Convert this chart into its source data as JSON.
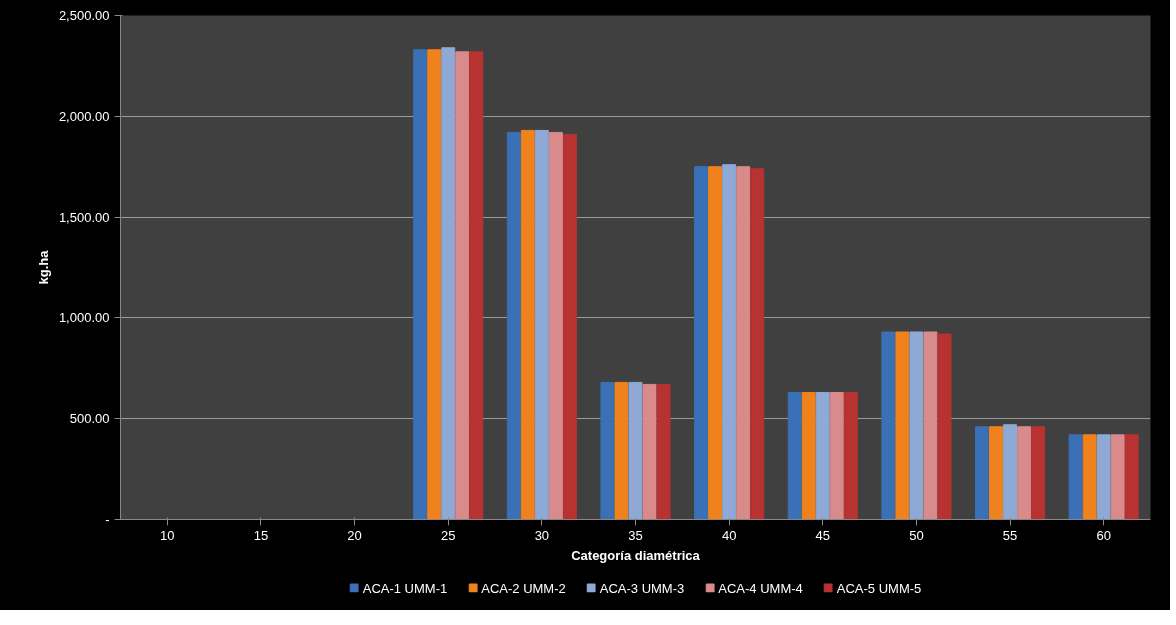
{
  "chart_data": {
    "type": "bar",
    "xlabel": "Categoría diamétrica",
    "ylabel": "kg.ha",
    "categories": [
      "10",
      "15",
      "20",
      "25",
      "30",
      "35",
      "40",
      "45",
      "50",
      "55",
      "60"
    ],
    "series": [
      {
        "name": "ACA-1 UMM-1",
        "color": "#3a70b5",
        "values": [
          0,
          0,
          0,
          2330,
          1920,
          680,
          1750,
          630,
          930,
          460,
          420
        ]
      },
      {
        "name": "ACA-2 UMM-2",
        "color": "#f0821e",
        "values": [
          0,
          0,
          0,
          2330,
          1930,
          680,
          1750,
          630,
          930,
          460,
          420
        ]
      },
      {
        "name": "ACA-3 UMM-3",
        "color": "#8ea9d6",
        "values": [
          0,
          0,
          0,
          2340,
          1930,
          680,
          1760,
          630,
          930,
          470,
          420
        ]
      },
      {
        "name": "ACA-4 UMM-4",
        "color": "#d98a8a",
        "values": [
          0,
          0,
          0,
          2320,
          1920,
          670,
          1750,
          630,
          930,
          460,
          420
        ]
      },
      {
        "name": "ACA-5 UMM-5",
        "color": "#b83232",
        "values": [
          0,
          0,
          0,
          2320,
          1910,
          670,
          1740,
          630,
          920,
          460,
          420
        ]
      }
    ],
    "ylim": [
      0,
      2500
    ],
    "yticks": [
      {
        "value": 0,
        "label": "-"
      },
      {
        "value": 500,
        "label": "500.00"
      },
      {
        "value": 1000,
        "label": "1,000.00"
      },
      {
        "value": 1500,
        "label": "1,500.00"
      },
      {
        "value": 2000,
        "label": "2,000.00"
      },
      {
        "value": 2500,
        "label": "2,500.00"
      }
    ],
    "grid": "y",
    "legend": "bottom"
  }
}
